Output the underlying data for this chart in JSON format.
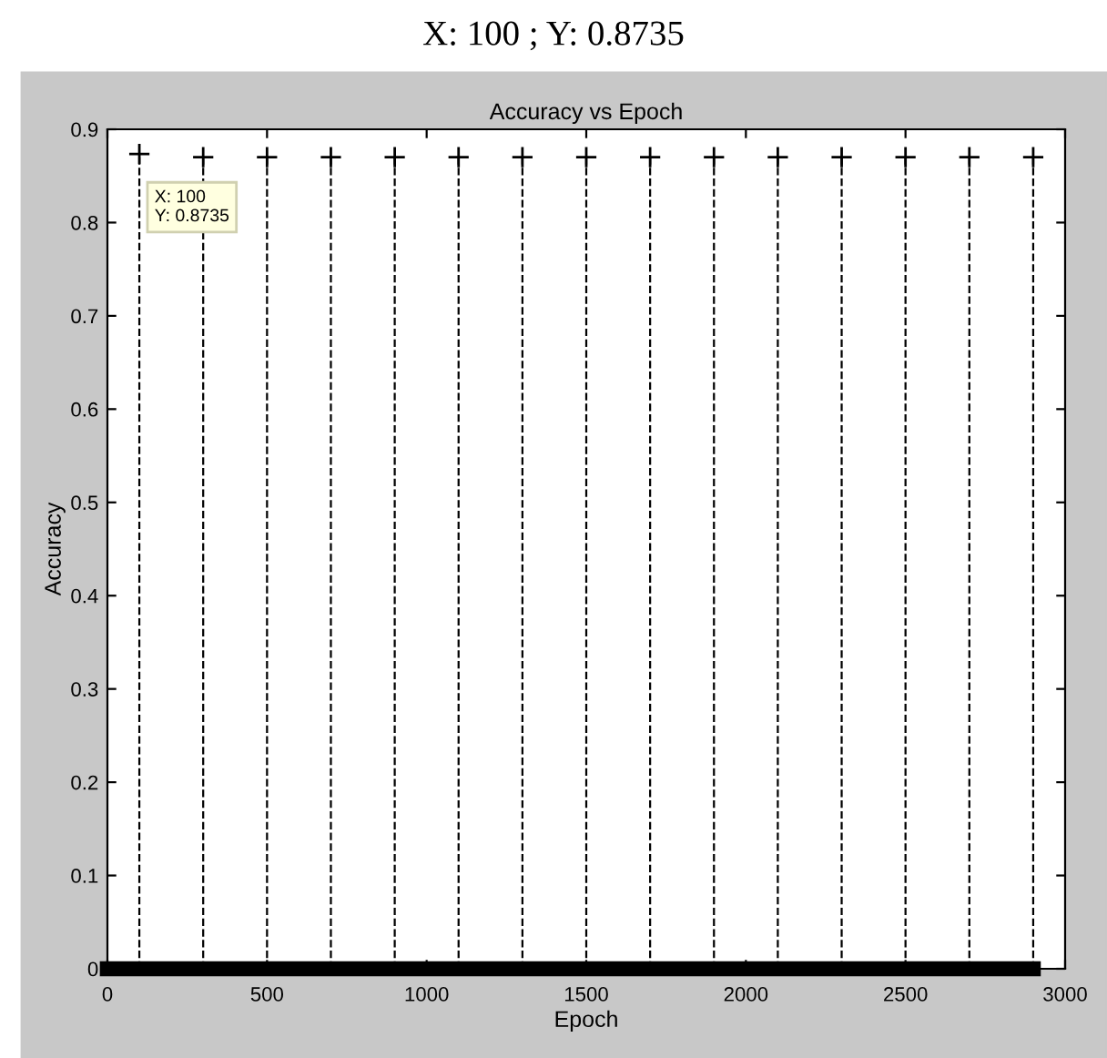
{
  "chart_data": {
    "type": "lollipop",
    "title": "Accuracy vs Epoch",
    "xlabel": "Epoch",
    "ylabel": "Accuracy",
    "annotations": [
      "X: 100 ; Y: 0.8735",
      {
        "text": "X: 100\nY: 0.8735",
        "x": 100,
        "y": 0.8735
      }
    ],
    "series": [
      {
        "color": "#000000",
        "marker": "cross",
        "line_style": "dashed",
        "x": [
          100,
          300,
          500,
          700,
          900,
          1100,
          1300,
          1500,
          1700,
          1900,
          2100,
          2300,
          2500,
          2700,
          2900
        ],
        "values": [
          0.8735,
          0.87,
          0.87,
          0.87,
          0.87,
          0.87,
          0.87,
          0.87,
          0.87,
          0.87,
          0.87,
          0.87,
          0.87,
          0.87,
          0.87
        ]
      },
      {
        "type": "line",
        "color": "#000000",
        "line_style": "solid",
        "x": [
          0,
          2900
        ],
        "values": [
          0,
          0
        ]
      }
    ],
    "xlim": [
      0,
      3000
    ],
    "ylim": [
      0,
      0.9
    ],
    "xticks": [
      0,
      500,
      1000,
      1500,
      2000,
      2500,
      3000
    ],
    "yticks": [
      0,
      0.1,
      0.2,
      0.3,
      0.4,
      0.5,
      0.6,
      0.7,
      0.8,
      0.9
    ],
    "grid": false,
    "legend": false
  }
}
